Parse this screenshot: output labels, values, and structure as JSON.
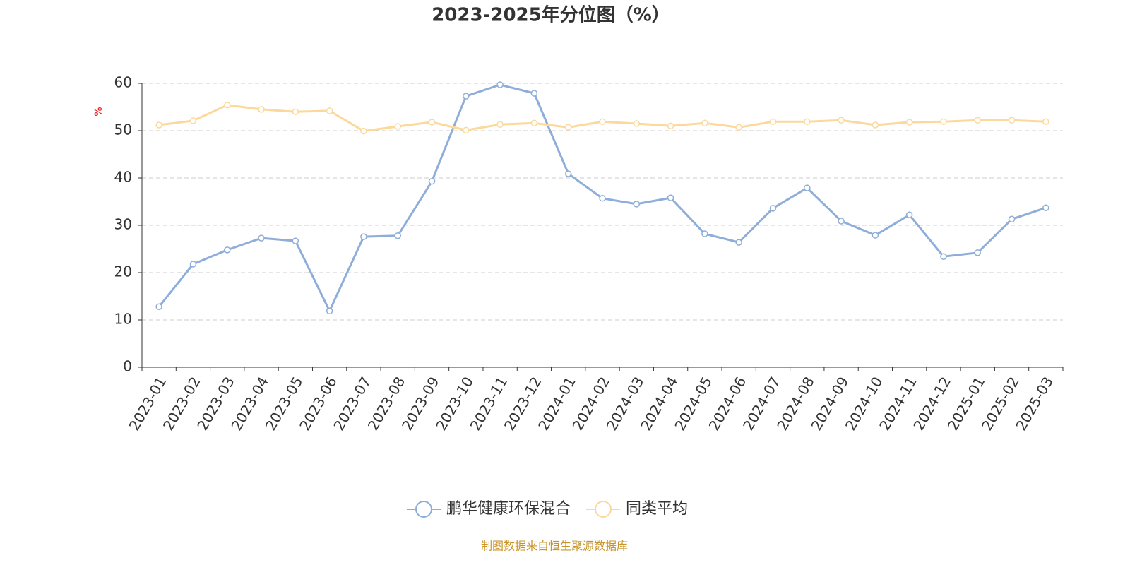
{
  "chart_data": {
    "type": "line",
    "title": "2023-2025年分位图（%）",
    "y_label": "%",
    "categories": [
      "2023-01",
      "2023-02",
      "2023-03",
      "2023-04",
      "2023-05",
      "2023-06",
      "2023-07",
      "2023-08",
      "2023-09",
      "2023-10",
      "2023-11",
      "2023-12",
      "2024-01",
      "2024-02",
      "2024-03",
      "2024-04",
      "2024-05",
      "2024-06",
      "2024-07",
      "2024-08",
      "2024-09",
      "2024-10",
      "2024-11",
      "2024-12",
      "2025-01",
      "2025-02",
      "2025-03"
    ],
    "series": [
      {
        "name": "鹏华健康环保混合",
        "color": "#8eadd9",
        "values": [
          12.8,
          21.8,
          24.8,
          27.3,
          26.7,
          11.9,
          27.6,
          27.8,
          39.3,
          57.3,
          59.7,
          57.9,
          40.9,
          35.7,
          34.5,
          35.8,
          28.2,
          26.4,
          33.6,
          37.9,
          30.9,
          27.9,
          32.2,
          23.4,
          24.2,
          31.3,
          33.7
        ]
      },
      {
        "name": "同类平均",
        "color": "#fcd99a",
        "values": [
          51.2,
          52.1,
          55.4,
          54.5,
          54.0,
          54.2,
          49.9,
          50.9,
          51.8,
          50.1,
          51.3,
          51.6,
          50.7,
          51.9,
          51.5,
          51.0,
          51.6,
          50.7,
          51.9,
          51.9,
          52.2,
          51.2,
          51.8,
          51.9,
          52.2,
          52.2,
          51.9
        ]
      }
    ],
    "ylim": [
      0,
      60
    ],
    "yticks": [
      0,
      10,
      20,
      30,
      40,
      50,
      60
    ],
    "grid": true,
    "source": "制图数据来自恒生聚源数据库"
  }
}
